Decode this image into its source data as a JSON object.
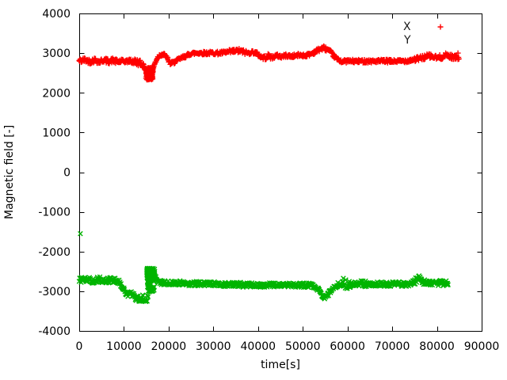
{
  "figure": {
    "background": "#ffffff",
    "axis_color": "#000000",
    "text_color": "#000000"
  },
  "chart_data": {
    "type": "scatter",
    "title": "",
    "xlabel": "time[s]",
    "ylabel": "Magnetic field [-]",
    "xlim": [
      0,
      90000
    ],
    "ylim": [
      -4000,
      4000
    ],
    "grid": false,
    "legend_position": "top-right-inside",
    "sample_step": 110,
    "xticks": [
      0,
      10000,
      20000,
      30000,
      40000,
      50000,
      60000,
      70000,
      80000,
      90000
    ],
    "xtick_labels": [
      "0",
      "10000",
      "20000",
      "30000",
      "40000",
      "50000",
      "60000",
      "70000",
      "80000",
      "90000"
    ],
    "yticks": [
      4000,
      3000,
      2000,
      1000,
      0,
      -1000,
      -2000,
      -3000,
      -4000
    ],
    "ytick_labels": [
      "4000",
      "3000",
      "2000",
      "1000",
      "0",
      "-1000",
      "-2000",
      "-3000",
      "-4000"
    ],
    "legend": {
      "entries": [
        {
          "label": "X",
          "marker_glyph": "+",
          "marker_color": "#ff0000",
          "marker_visible": true
        },
        {
          "label": "Y",
          "marker_glyph": "×",
          "marker_color": "#00b400",
          "marker_visible": false
        }
      ]
    },
    "series": [
      {
        "name": "X",
        "marker": "plus",
        "color": "#ff0000",
        "t_end": 85000,
        "noise": 40,
        "noise_regions": [
          [
            0,
            9500,
            60
          ],
          [
            11500,
            14500,
            80
          ],
          [
            33000,
            37500,
            55
          ],
          [
            40000,
            43500,
            55
          ],
          [
            52500,
            56500,
            50
          ],
          [
            74500,
            85000,
            60
          ]
        ],
        "keyframes": [
          [
            0,
            2800
          ],
          [
            1200,
            2830
          ],
          [
            2500,
            2790
          ],
          [
            3500,
            2830
          ],
          [
            4500,
            2780
          ],
          [
            5500,
            2830
          ],
          [
            6500,
            2790
          ],
          [
            7500,
            2820
          ],
          [
            8500,
            2780
          ],
          [
            9500,
            2800
          ],
          [
            10500,
            2790
          ],
          [
            11500,
            2810
          ],
          [
            12500,
            2780
          ],
          [
            13500,
            2760
          ],
          [
            14300,
            2700
          ],
          [
            14900,
            2600
          ],
          [
            15400,
            2480
          ],
          [
            15900,
            2450
          ],
          [
            16300,
            2560
          ],
          [
            16800,
            2700
          ],
          [
            17400,
            2870
          ],
          [
            18100,
            2960
          ],
          [
            18900,
            2970
          ],
          [
            19600,
            2890
          ],
          [
            20400,
            2730
          ],
          [
            21200,
            2770
          ],
          [
            22200,
            2840
          ],
          [
            23500,
            2910
          ],
          [
            25000,
            2990
          ],
          [
            26500,
            3005
          ],
          [
            28000,
            3000
          ],
          [
            30000,
            3005
          ],
          [
            31500,
            3000
          ],
          [
            33000,
            3020
          ],
          [
            34500,
            3045
          ],
          [
            35800,
            3060
          ],
          [
            36800,
            3030
          ],
          [
            37800,
            3000
          ],
          [
            38800,
            3030
          ],
          [
            39800,
            2990
          ],
          [
            40700,
            2900
          ],
          [
            41500,
            2880
          ],
          [
            42300,
            2930
          ],
          [
            43200,
            2890
          ],
          [
            44200,
            2940
          ],
          [
            45200,
            2910
          ],
          [
            46200,
            2940
          ],
          [
            47500,
            2920
          ],
          [
            49000,
            2950
          ],
          [
            50500,
            2940
          ],
          [
            51800,
            2980
          ],
          [
            53000,
            3050
          ],
          [
            54000,
            3110
          ],
          [
            54700,
            3130
          ],
          [
            55500,
            3090
          ],
          [
            56300,
            3010
          ],
          [
            57200,
            2900
          ],
          [
            58000,
            2820
          ],
          [
            59000,
            2790
          ],
          [
            60000,
            2800
          ],
          [
            62000,
            2795
          ],
          [
            64000,
            2800
          ],
          [
            66000,
            2795
          ],
          [
            68000,
            2800
          ],
          [
            70000,
            2795
          ],
          [
            72000,
            2800
          ],
          [
            73500,
            2810
          ],
          [
            74800,
            2840
          ],
          [
            76000,
            2860
          ],
          [
            77200,
            2900
          ],
          [
            78300,
            2930
          ],
          [
            79200,
            2900
          ],
          [
            80200,
            2880
          ],
          [
            81200,
            2910
          ],
          [
            82200,
            2950
          ],
          [
            83200,
            2910
          ],
          [
            84200,
            2890
          ],
          [
            85000,
            2910
          ]
        ],
        "clusters": [
          {
            "t": [
              14900,
              16500
            ],
            "v": [
              2330,
              2640
            ],
            "count": 130
          },
          {
            "t": [
              15100,
              16300
            ],
            "v": [
              2390,
              2600
            ],
            "count": 110
          }
        ],
        "outliers": [
          [
            84700,
            3000
          ]
        ]
      },
      {
        "name": "Y",
        "marker": "cross",
        "color": "#00b400",
        "t_end": 82500,
        "noise": 55,
        "noise_regions": [
          [
            0,
            9000,
            70
          ],
          [
            11500,
            15400,
            75
          ],
          [
            35000,
            41000,
            60
          ],
          [
            58800,
            60800,
            150
          ],
          [
            63000,
            64500,
            80
          ],
          [
            75000,
            77200,
            85
          ],
          [
            79800,
            82500,
            75
          ]
        ],
        "keyframes": [
          [
            0,
            -2720
          ],
          [
            1500,
            -2700
          ],
          [
            3000,
            -2730
          ],
          [
            4500,
            -2705
          ],
          [
            6000,
            -2735
          ],
          [
            7500,
            -2720
          ],
          [
            8800,
            -2760
          ],
          [
            9600,
            -2900
          ],
          [
            10300,
            -3020
          ],
          [
            10900,
            -3080
          ],
          [
            11400,
            -3040
          ],
          [
            12000,
            -3110
          ],
          [
            12700,
            -3180
          ],
          [
            13500,
            -3210
          ],
          [
            14200,
            -3170
          ],
          [
            14800,
            -3230
          ],
          [
            15300,
            -3180
          ],
          [
            15900,
            -2620
          ],
          [
            16400,
            -2530
          ],
          [
            16900,
            -2580
          ],
          [
            17300,
            -2740
          ],
          [
            18200,
            -2780
          ],
          [
            19500,
            -2790
          ],
          [
            21000,
            -2800
          ],
          [
            23000,
            -2790
          ],
          [
            25000,
            -2815
          ],
          [
            27000,
            -2805
          ],
          [
            29000,
            -2820
          ],
          [
            31000,
            -2810
          ],
          [
            33000,
            -2835
          ],
          [
            35000,
            -2825
          ],
          [
            37000,
            -2845
          ],
          [
            39000,
            -2835
          ],
          [
            41000,
            -2850
          ],
          [
            43000,
            -2840
          ],
          [
            45000,
            -2850
          ],
          [
            47000,
            -2840
          ],
          [
            49000,
            -2850
          ],
          [
            51000,
            -2845
          ],
          [
            52500,
            -2870
          ],
          [
            53600,
            -2970
          ],
          [
            54300,
            -3090
          ],
          [
            54900,
            -3150
          ],
          [
            55500,
            -3110
          ],
          [
            56300,
            -2990
          ],
          [
            57100,
            -2880
          ],
          [
            58000,
            -2830
          ],
          [
            59500,
            -2810
          ],
          [
            61000,
            -2825
          ],
          [
            63000,
            -2815
          ],
          [
            65000,
            -2825
          ],
          [
            67000,
            -2815
          ],
          [
            69000,
            -2825
          ],
          [
            71000,
            -2815
          ],
          [
            73000,
            -2825
          ],
          [
            74500,
            -2800
          ],
          [
            75400,
            -2720
          ],
          [
            76100,
            -2680
          ],
          [
            76900,
            -2750
          ],
          [
            78000,
            -2800
          ],
          [
            79500,
            -2785
          ],
          [
            81000,
            -2800
          ],
          [
            82500,
            -2790
          ]
        ],
        "clusters": [
          {
            "t": [
              15100,
              16900
            ],
            "v": [
              -2680,
              -2420
            ],
            "count": 150
          },
          {
            "t": [
              15200,
              16800
            ],
            "v": [
              -3020,
              -2650
            ],
            "count": 55
          }
        ],
        "outliers": [
          [
            250,
            -1550
          ]
        ]
      }
    ]
  }
}
